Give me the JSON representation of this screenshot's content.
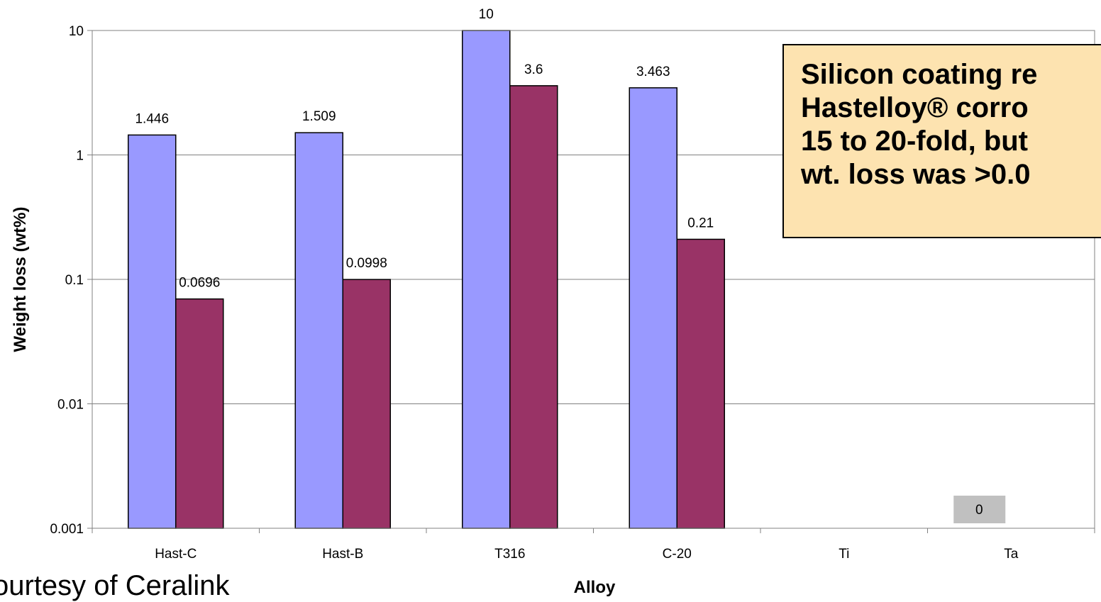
{
  "chart_data": {
    "type": "bar",
    "categories": [
      "Hast-C",
      "Hast-B",
      "T316",
      "C-20",
      "Ti",
      "Ta"
    ],
    "series": [
      {
        "values": [
          1.446,
          1.509,
          10,
          3.463,
          null,
          null
        ],
        "labels": [
          "1.446",
          "1.509",
          "10",
          "3.463",
          "",
          ""
        ]
      },
      {
        "values": [
          0.0696,
          0.0998,
          3.6,
          0.21,
          null,
          null
        ],
        "labels": [
          "0.0696",
          "0.0998",
          "3.6",
          "0.21",
          "",
          ""
        ]
      }
    ],
    "extra_label": {
      "category": "Ta",
      "text": "0"
    },
    "xlabel": "Alloy",
    "ylabel": "Weight loss (wt%)",
    "yscale": "log",
    "ylim": [
      0.001,
      10
    ],
    "yticks": [
      "0.001",
      "0.01",
      "0.1",
      "1",
      "10"
    ],
    "grid": true,
    "colors": [
      "#9999ff",
      "#993366"
    ]
  },
  "callout": {
    "lines": [
      "Silicon coating re",
      "Hastelloy® corro",
      "15 to 20-fold, but",
      "wt. loss was >0.0"
    ]
  },
  "credit": "ourtesy of Ceralink"
}
